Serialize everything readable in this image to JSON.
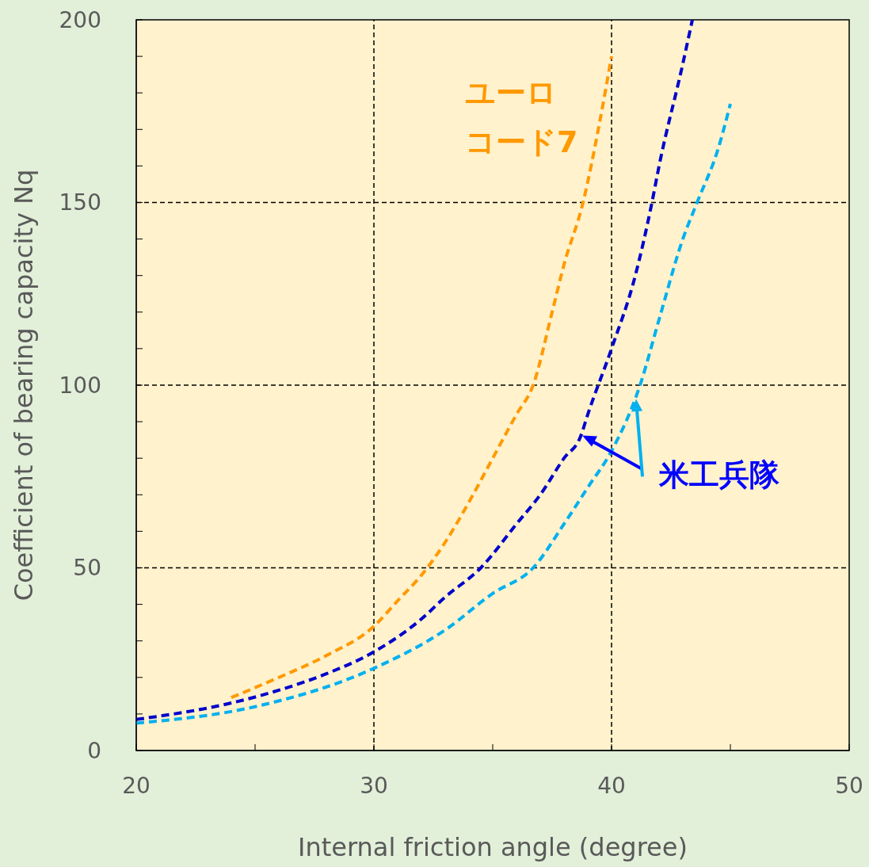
{
  "chart_data": {
    "type": "line",
    "xlabel": "Internal friction angle (degree)",
    "ylabel": "Coefficient of bearing capacity Nq",
    "xlim": [
      20,
      50
    ],
    "xticks": [
      20,
      {
        "value": 25,
        "label": null
      },
      30,
      {
        "value": 35,
        "label": null
      },
      40,
      {
        "value": 45,
        "label": null
      },
      50
    ],
    "ylim": [
      0,
      200
    ],
    "yticks": [
      0,
      {
        "value": 10,
        "label": null
      },
      {
        "value": 20,
        "label": null
      },
      {
        "value": 30,
        "label": null
      },
      {
        "value": 40,
        "label": null
      },
      50,
      {
        "value": 60,
        "label": null
      },
      {
        "value": 70,
        "label": null
      },
      {
        "value": 80,
        "label": null
      },
      {
        "value": 90,
        "label": null
      },
      100,
      {
        "value": 110,
        "label": null
      },
      {
        "value": 120,
        "label": null
      },
      {
        "value": 130,
        "label": null
      },
      {
        "value": 140,
        "label": null
      },
      150,
      {
        "value": 160,
        "label": null
      },
      {
        "value": 170,
        "label": null
      },
      {
        "value": 180,
        "label": null
      },
      {
        "value": 190,
        "label": null
      },
      200
    ],
    "grid": true,
    "marker": "none",
    "line_style": "dashed",
    "annotations": [
      {
        "text": "米工兵隊",
        "x": 41,
        "y": 96
      }
    ],
    "series": [
      {
        "name": "ユーロコード7",
        "color": "#ff9900",
        "x": [
          24,
          26,
          28,
          30,
          31,
          32,
          33,
          34,
          35,
          36,
          36.7,
          37.5,
          38,
          38.8,
          39.5,
          40
        ],
        "values": [
          14.5,
          20,
          26,
          34,
          41,
          48,
          57,
          68,
          80,
          92,
          100,
          120,
          133,
          150,
          172,
          190
        ]
      },
      {
        "color": "#0000cc",
        "x": [
          20,
          24,
          26,
          28,
          30,
          32,
          33,
          34.5,
          36,
          37,
          38,
          38.7,
          39,
          40,
          41,
          41.7,
          42,
          43,
          43.4
        ],
        "values": [
          8.5,
          13,
          16.5,
          21,
          27,
          36,
          42,
          50,
          62,
          70,
          80,
          86,
          92,
          110,
          130,
          150,
          160,
          188,
          200
        ]
      },
      {
        "color": "#00b0f0",
        "x": [
          20,
          25,
          30,
          33,
          35,
          36.7,
          38,
          39,
          40,
          41.2,
          42,
          43,
          43.6,
          44.5,
          45
        ],
        "values": [
          7.5,
          12,
          22.5,
          33,
          43,
          50,
          62,
          72,
          82,
          100,
          118,
          140,
          150,
          165,
          177
        ]
      }
    ]
  }
}
